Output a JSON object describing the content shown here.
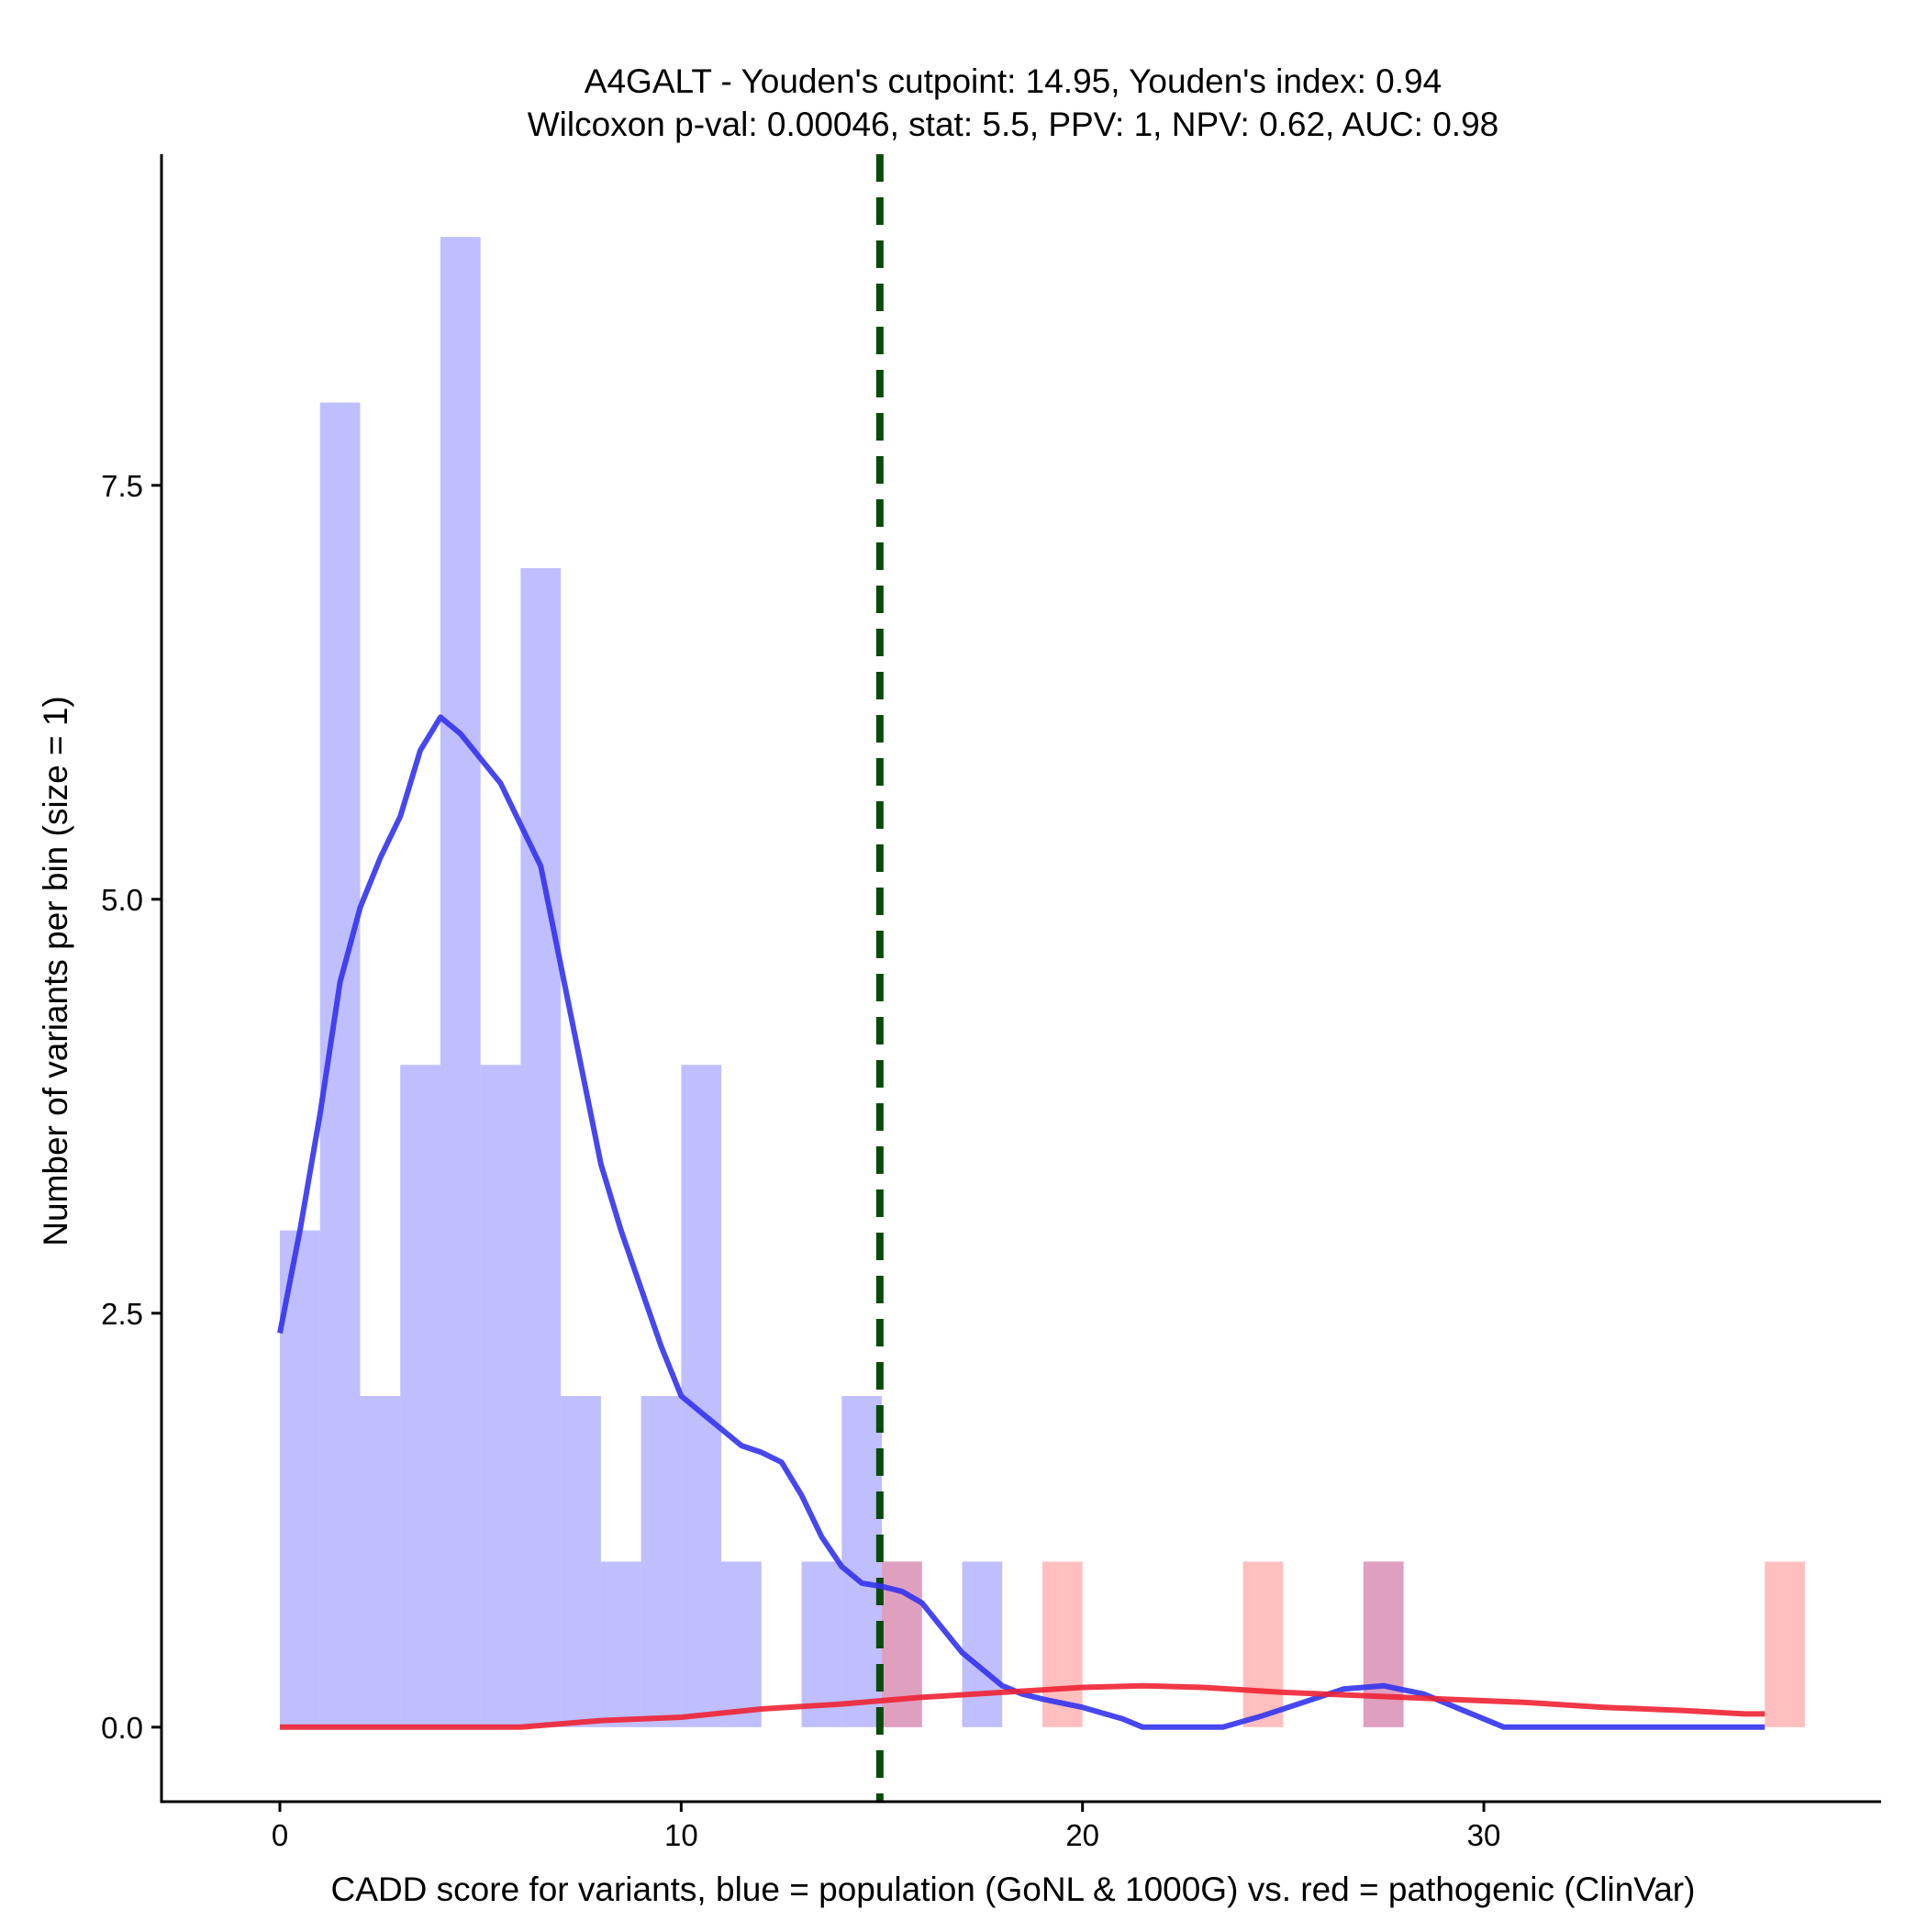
{
  "chart_data": {
    "type": "bar",
    "title_line1": "A4GALT - Youden's cutpoint: 14.95, Youden's index: 0.94",
    "title_line2": "Wilcoxon p-val: 0.00046, stat: 5.5, PPV: 1, NPV: 0.62, AUC: 0.98",
    "xlabel": "CADD score for variants, blue = population (GoNL & 1000G) vs. red = pathogenic (ClinVar)",
    "ylabel": "Number of variants per bin (size = 1)",
    "xlim": [
      -2.95,
      39.9
    ],
    "ylim": [
      -0.45,
      9.5
    ],
    "x_ticks": [
      0,
      10,
      20,
      30
    ],
    "x_tick_labels": [
      "0",
      "10",
      "20",
      "30"
    ],
    "y_ticks": [
      0,
      2.5,
      5,
      7.5
    ],
    "y_tick_labels": [
      "0.0",
      "2.5",
      "5.0",
      "7.5"
    ],
    "bin_width": 1,
    "series": [
      {
        "name": "population (GoNL & 1000G)",
        "color": "#8080ff",
        "opacity": 0.5,
        "bins": [
          {
            "x0": 0,
            "count": 3
          },
          {
            "x0": 1,
            "count": 8
          },
          {
            "x0": 2,
            "count": 2
          },
          {
            "x0": 3,
            "count": 4
          },
          {
            "x0": 4,
            "count": 9
          },
          {
            "x0": 5,
            "count": 4
          },
          {
            "x0": 6,
            "count": 7
          },
          {
            "x0": 7,
            "count": 2
          },
          {
            "x0": 8,
            "count": 1
          },
          {
            "x0": 9,
            "count": 2
          },
          {
            "x0": 10,
            "count": 4
          },
          {
            "x0": 11,
            "count": 1
          },
          {
            "x0": 13,
            "count": 1
          },
          {
            "x0": 14,
            "count": 2
          },
          {
            "x0": 15,
            "count": 1
          },
          {
            "x0": 17,
            "count": 1
          },
          {
            "x0": 27,
            "count": 1
          }
        ]
      },
      {
        "name": "pathogenic (ClinVar)",
        "color": "#ff8080",
        "opacity": 0.5,
        "bins": [
          {
            "x0": 15,
            "count": 1
          },
          {
            "x0": 19,
            "count": 1
          },
          {
            "x0": 24,
            "count": 1
          },
          {
            "x0": 27,
            "count": 1
          },
          {
            "x0": 37,
            "count": 1
          }
        ]
      }
    ],
    "density_lines": [
      {
        "name": "population density",
        "color": "#3333ee",
        "points": [
          [
            0,
            2.38
          ],
          [
            0.5,
            3.0
          ],
          [
            1,
            3.7
          ],
          [
            1.5,
            4.5
          ],
          [
            2,
            4.95
          ],
          [
            2.5,
            5.25
          ],
          [
            3,
            5.5
          ],
          [
            3.5,
            5.9
          ],
          [
            4,
            6.1
          ],
          [
            4.5,
            6.0
          ],
          [
            5,
            5.85
          ],
          [
            5.5,
            5.7
          ],
          [
            6,
            5.45
          ],
          [
            6.5,
            5.2
          ],
          [
            7,
            4.6
          ],
          [
            7.5,
            4.0
          ],
          [
            8,
            3.4
          ],
          [
            8.5,
            3.0
          ],
          [
            9,
            2.65
          ],
          [
            9.5,
            2.3
          ],
          [
            10,
            2.0
          ],
          [
            10.5,
            1.9
          ],
          [
            11,
            1.8
          ],
          [
            11.5,
            1.7
          ],
          [
            12,
            1.66
          ],
          [
            12.5,
            1.6
          ],
          [
            13,
            1.4
          ],
          [
            13.5,
            1.15
          ],
          [
            14,
            0.97
          ],
          [
            14.5,
            0.87
          ],
          [
            15,
            0.85
          ],
          [
            15.5,
            0.82
          ],
          [
            16,
            0.75
          ],
          [
            16.5,
            0.6
          ],
          [
            17,
            0.45
          ],
          [
            17.5,
            0.35
          ],
          [
            18,
            0.25
          ],
          [
            18.5,
            0.2
          ],
          [
            19,
            0.17
          ],
          [
            20,
            0.12
          ],
          [
            21,
            0.05
          ],
          [
            21.5,
            0.0
          ],
          [
            23.5,
            0.0
          ],
          [
            24.5,
            0.07
          ],
          [
            25.5,
            0.15
          ],
          [
            26.5,
            0.23
          ],
          [
            27.5,
            0.25
          ],
          [
            28.5,
            0.2
          ],
          [
            29.5,
            0.1
          ],
          [
            30.5,
            0.0
          ],
          [
            37,
            0.0
          ]
        ]
      },
      {
        "name": "pathogenic density",
        "color": "#ee2233",
        "points": [
          [
            0,
            0.0
          ],
          [
            6,
            0.0
          ],
          [
            8,
            0.04
          ],
          [
            10,
            0.06
          ],
          [
            12,
            0.11
          ],
          [
            14,
            0.14
          ],
          [
            16,
            0.18
          ],
          [
            18,
            0.21
          ],
          [
            20,
            0.24
          ],
          [
            21.5,
            0.25
          ],
          [
            23,
            0.24
          ],
          [
            25,
            0.21
          ],
          [
            27,
            0.19
          ],
          [
            29,
            0.17
          ],
          [
            31,
            0.15
          ],
          [
            33,
            0.12
          ],
          [
            35,
            0.1
          ],
          [
            36.5,
            0.08
          ],
          [
            37,
            0.08
          ]
        ]
      }
    ],
    "cutpoint": {
      "x": 14.95,
      "color": "#0a4a0a",
      "style": "dashed"
    }
  }
}
